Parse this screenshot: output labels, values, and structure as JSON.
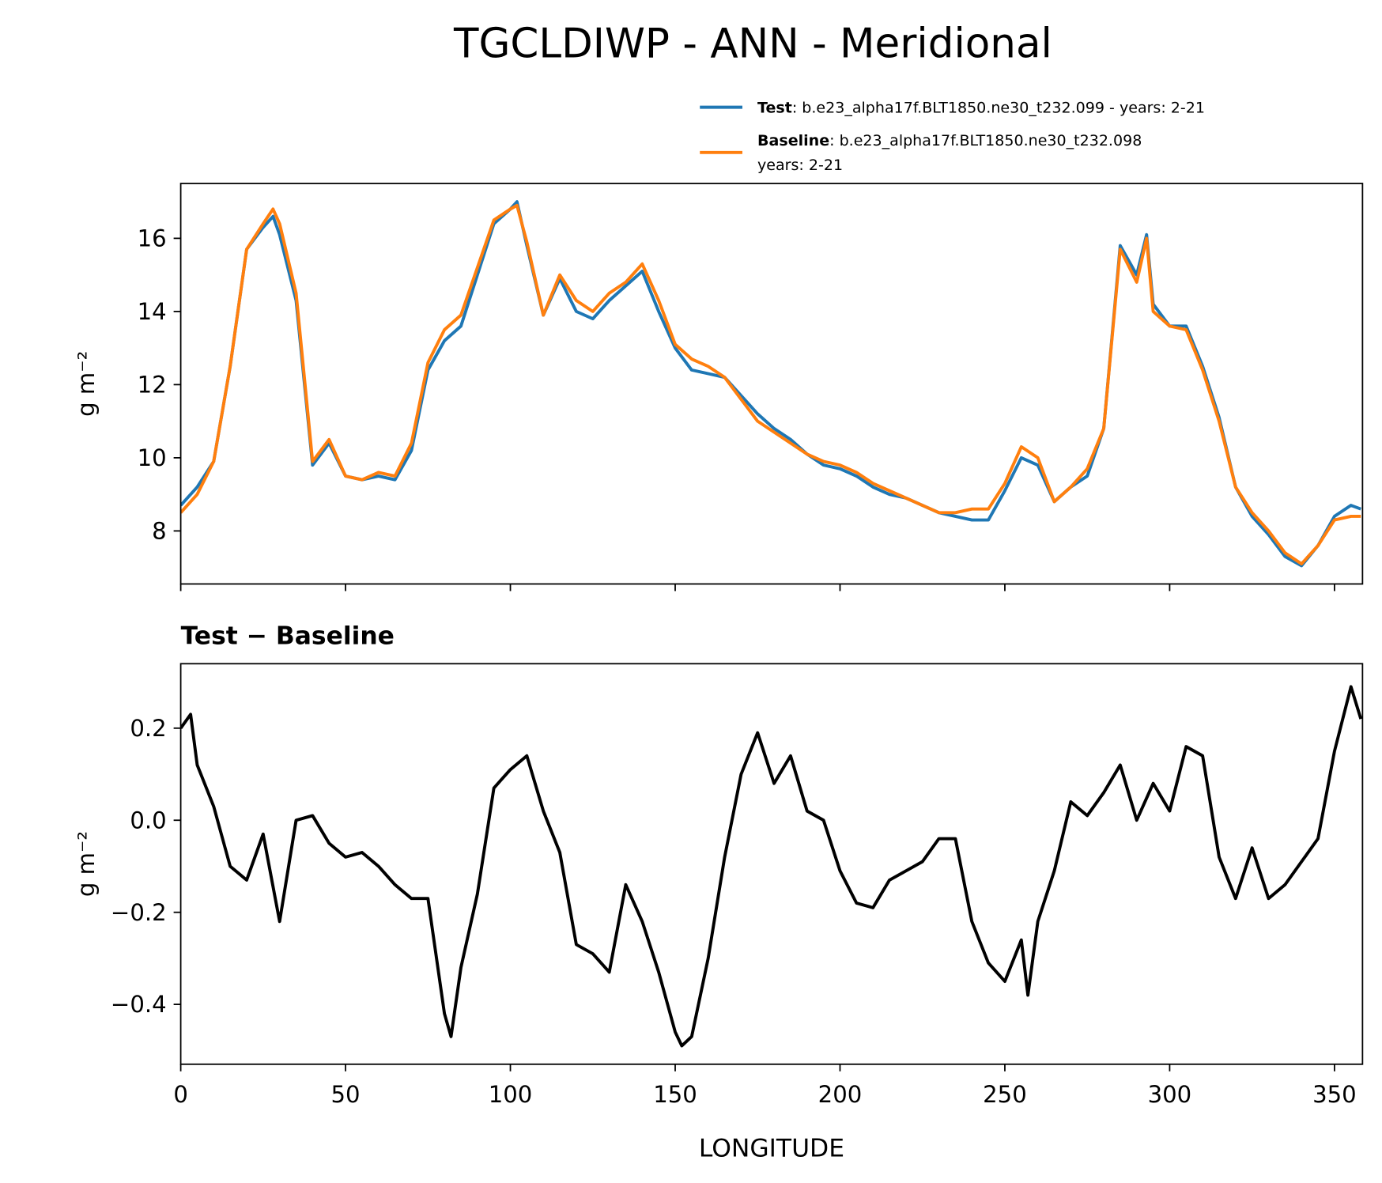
{
  "title": "TGCLDIWP - ANN - Meridional",
  "chart_data": [
    {
      "type": "line",
      "ylabel": "g m⁻²",
      "x": [
        0,
        5,
        10,
        15,
        20,
        25,
        28,
        30,
        35,
        40,
        45,
        50,
        55,
        60,
        65,
        70,
        75,
        80,
        85,
        90,
        95,
        100,
        102,
        105,
        110,
        115,
        120,
        125,
        130,
        135,
        140,
        145,
        150,
        155,
        160,
        165,
        170,
        175,
        180,
        185,
        190,
        195,
        200,
        205,
        210,
        215,
        220,
        225,
        230,
        235,
        240,
        245,
        250,
        255,
        260,
        265,
        270,
        275,
        280,
        285,
        290,
        293,
        295,
        300,
        305,
        310,
        315,
        320,
        325,
        330,
        335,
        340,
        345,
        350,
        355,
        358
      ],
      "series": [
        {
          "name": "Test",
          "description": [
            ": b.e23_alpha17f.BLT1850.ne30_t232.099 - years: 2-21"
          ],
          "color": "#1f77b4",
          "values": [
            8.7,
            9.2,
            9.9,
            12.5,
            15.7,
            16.3,
            16.6,
            16.1,
            14.3,
            9.8,
            10.4,
            9.5,
            9.4,
            9.5,
            9.4,
            10.2,
            12.4,
            13.2,
            13.6,
            15.0,
            16.4,
            16.8,
            17.0,
            15.8,
            13.9,
            14.9,
            14.0,
            13.8,
            14.3,
            14.7,
            15.1,
            14.0,
            13.0,
            12.4,
            12.3,
            12.2,
            11.7,
            11.2,
            10.8,
            10.5,
            10.1,
            9.8,
            9.7,
            9.5,
            9.2,
            9.0,
            8.9,
            8.7,
            8.5,
            8.4,
            8.3,
            8.3,
            9.1,
            10.0,
            9.8,
            8.8,
            9.2,
            9.5,
            10.8,
            15.8,
            15.0,
            16.1,
            14.2,
            13.6,
            13.6,
            12.5,
            11.1,
            9.2,
            8.4,
            7.9,
            7.3,
            7.05,
            7.6,
            8.4,
            8.7,
            8.6
          ]
        },
        {
          "name": "Baseline",
          "description": [
            ": b.e23_alpha17f.BLT1850.ne30_t232.098",
            "years: 2-21"
          ],
          "color": "#ff7f0e",
          "values": [
            8.5,
            9.0,
            9.9,
            12.5,
            15.7,
            16.4,
            16.8,
            16.4,
            14.5,
            9.9,
            10.5,
            9.5,
            9.4,
            9.6,
            9.5,
            10.4,
            12.6,
            13.5,
            13.9,
            15.2,
            16.5,
            16.8,
            16.9,
            15.9,
            13.9,
            15.0,
            14.3,
            14.0,
            14.5,
            14.8,
            15.3,
            14.3,
            13.1,
            12.7,
            12.5,
            12.2,
            11.6,
            11.0,
            10.7,
            10.4,
            10.1,
            9.9,
            9.8,
            9.6,
            9.3,
            9.1,
            8.9,
            8.7,
            8.5,
            8.5,
            8.6,
            8.6,
            9.3,
            10.3,
            10.0,
            8.8,
            9.2,
            9.7,
            10.8,
            15.7,
            14.8,
            16.0,
            14.0,
            13.6,
            13.5,
            12.4,
            11.0,
            9.2,
            8.5,
            8.0,
            7.4,
            7.1,
            7.6,
            8.3,
            8.4,
            8.4
          ]
        }
      ],
      "xlim": [
        0,
        358.5
      ],
      "xticks": [
        0,
        50,
        100,
        150,
        200,
        250,
        300,
        350
      ],
      "ylim": [
        6.55,
        17.5
      ],
      "yticks": [
        8,
        10,
        12,
        14,
        16
      ],
      "legend": "upper right"
    },
    {
      "type": "line",
      "title": "Test − Baseline",
      "xlabel": "LONGITUDE",
      "ylabel": "g m⁻²",
      "x": [
        0,
        3,
        5,
        10,
        15,
        20,
        25,
        30,
        35,
        40,
        45,
        50,
        55,
        60,
        65,
        70,
        75,
        80,
        82,
        85,
        90,
        95,
        100,
        105,
        110,
        115,
        120,
        125,
        130,
        135,
        140,
        145,
        150,
        152,
        155,
        160,
        165,
        170,
        175,
        180,
        185,
        190,
        195,
        200,
        205,
        210,
        215,
        220,
        225,
        230,
        235,
        240,
        245,
        250,
        255,
        257,
        260,
        265,
        270,
        275,
        280,
        285,
        290,
        295,
        300,
        305,
        310,
        315,
        320,
        325,
        330,
        335,
        340,
        345,
        350,
        355,
        358
      ],
      "series": [
        {
          "name": "Test − Baseline",
          "color": "#000000",
          "values": [
            0.2,
            0.23,
            0.12,
            0.03,
            -0.1,
            -0.13,
            -0.03,
            -0.22,
            0.0,
            0.01,
            -0.05,
            -0.08,
            -0.07,
            -0.1,
            -0.14,
            -0.17,
            -0.17,
            -0.42,
            -0.47,
            -0.32,
            -0.16,
            0.07,
            0.11,
            0.14,
            0.02,
            -0.07,
            -0.27,
            -0.29,
            -0.33,
            -0.14,
            -0.22,
            -0.33,
            -0.46,
            -0.49,
            -0.47,
            -0.3,
            -0.08,
            0.1,
            0.19,
            0.08,
            0.14,
            0.02,
            0.0,
            -0.11,
            -0.18,
            -0.19,
            -0.13,
            -0.11,
            -0.09,
            -0.04,
            -0.04,
            -0.22,
            -0.31,
            -0.35,
            -0.26,
            -0.38,
            -0.22,
            -0.11,
            0.04,
            0.01,
            0.06,
            0.12,
            0.0,
            0.08,
            0.02,
            0.16,
            0.14,
            -0.08,
            -0.17,
            -0.06,
            -0.17,
            -0.14,
            -0.09,
            -0.04,
            0.15,
            0.29,
            0.22
          ]
        }
      ],
      "xlim": [
        0,
        358.5
      ],
      "xticks": [
        0,
        50,
        100,
        150,
        200,
        250,
        300,
        350
      ],
      "ylim": [
        -0.53,
        0.34
      ],
      "yticks": [
        {
          "value": -0.4,
          "label": "−0.4"
        },
        {
          "value": -0.2,
          "label": "−0.2"
        },
        {
          "value": 0,
          "label": "0.0"
        },
        0.2
      ]
    }
  ]
}
